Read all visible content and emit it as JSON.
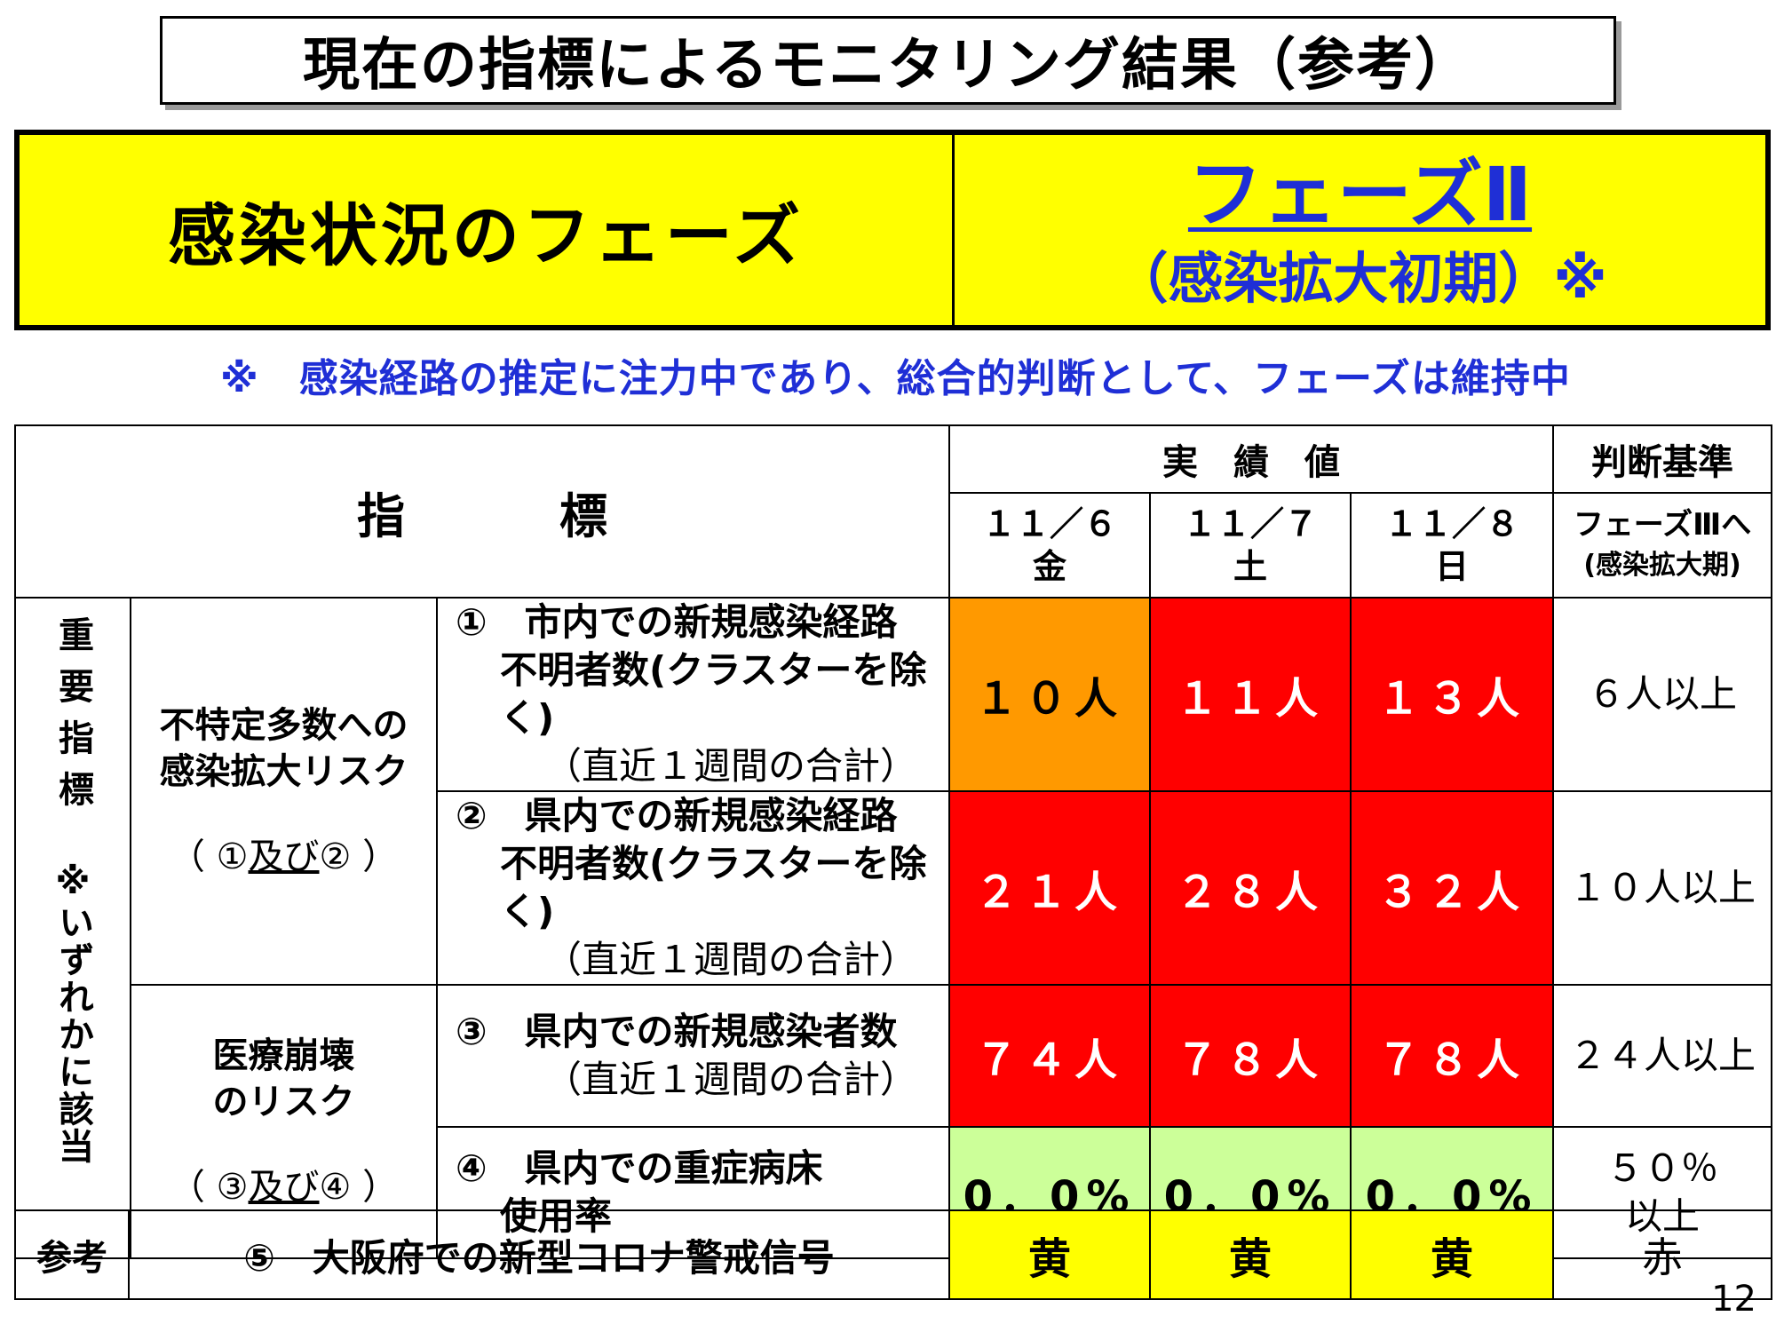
{
  "title": "現在の指標によるモニタリング結果（参考）",
  "phase": {
    "label": "感染状況のフェーズ",
    "name": "フェーズⅡ",
    "subtitle": "（感染拡大初期）※"
  },
  "note": "※　感染経路の推定に注力中であり、総合的判断として、フェーズは維持中",
  "table": {
    "indicator_header": "指　標",
    "results_header": "実　績　値",
    "criteria_header": "判断基準",
    "dates": [
      {
        "date": "１１／６",
        "day": "金"
      },
      {
        "date": "１１／７",
        "day": "土"
      },
      {
        "date": "１１／８",
        "day": "日"
      }
    ],
    "criteria_phase_line1": "フェーズⅢへ",
    "criteria_phase_line2": "(感染拡大期)",
    "important_label": "重要指標",
    "important_note": "※いずれかに該当",
    "groups": [
      {
        "line1": "不特定多数への",
        "line2": "感染拡大リスク",
        "cond_prefix": "（ ①",
        "cond_and": "及び",
        "cond_suffix": "② ）"
      },
      {
        "line1": "医療崩壊",
        "line2": "のリスク",
        "cond_prefix": "（ ③",
        "cond_and": "及び",
        "cond_suffix": "④ ）"
      }
    ],
    "rows": [
      {
        "line1": "①　市内での新規感染経路",
        "line2": "不明者数(クラスターを除く)",
        "line3": "（直近１週間の合計）",
        "values": [
          "１０人",
          "１１人",
          "１３人"
        ],
        "colors": [
          "#ff9900",
          "#ff0000",
          "#ff0000"
        ],
        "criterion": "６人以上"
      },
      {
        "line1": "②　県内での新規感染経路",
        "line2": "不明者数(クラスターを除く)",
        "line3": "（直近１週間の合計）",
        "values": [
          "２１人",
          "２８人",
          "３２人"
        ],
        "colors": [
          "#ff0000",
          "#ff0000",
          "#ff0000"
        ],
        "criterion": "１０人以上"
      },
      {
        "line1": "③　県内での新規感染者数",
        "line3": "（直近１週間の合計）",
        "values": [
          "７４人",
          "７８人",
          "７８人"
        ],
        "colors": [
          "#ff0000",
          "#ff0000",
          "#ff0000"
        ],
        "criterion": "２４人以上"
      },
      {
        "line1": "④　県内での重症病床",
        "line2": "使用率",
        "values": [
          "0．0%",
          "0．0%",
          "0．0%"
        ],
        "colors": [
          "#ccff99",
          "#ccff99",
          "#ccff99"
        ],
        "criterion_line1": "５０％",
        "criterion_line2": "以上"
      }
    ]
  },
  "reference": {
    "label": "参考",
    "item": "⑤　大阪府での新型コロナ警戒信号",
    "values": [
      "黄",
      "黄",
      "黄"
    ],
    "criterion": "赤"
  },
  "page_number": "12"
}
